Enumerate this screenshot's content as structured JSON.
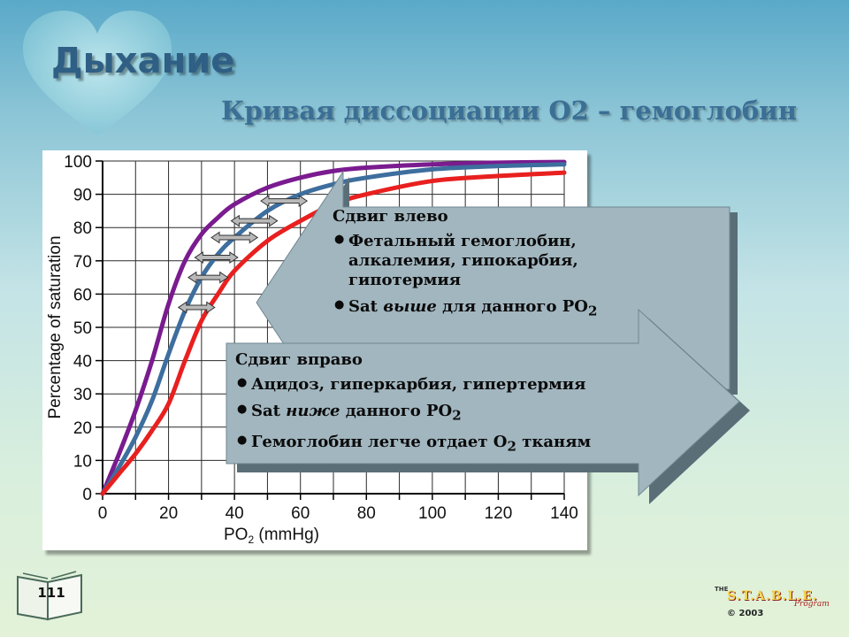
{
  "slide": {
    "title": "Дыхание",
    "subtitle": "Кривая диссоциации О2 – гемоглобин",
    "page_number": "111"
  },
  "logo": {
    "the": "THE",
    "name": "S.T.A.B.L.E.",
    "program": "Program",
    "copyright": "© 2003"
  },
  "callout_left": {
    "heading": "Сдвиг влево",
    "bullets": [
      {
        "text": "Фетальный гемоглобин, алкалемия, гипокарбия, гипотермия"
      },
      {
        "pre": "Sat ",
        "em": "выше",
        "post": " для данного PO",
        "sub": "2"
      }
    ]
  },
  "callout_right": {
    "heading": "Сдвиг вправо",
    "bullets": [
      {
        "text": "Ацидоз, гиперкарбия, гипертермия"
      },
      {
        "pre": "Sat ",
        "em": "ниже",
        "post": " данного PO",
        "sub": "2"
      },
      {
        "pre": "Гемоглобин легче отдает O",
        "sub": "2",
        "post": " тканям"
      }
    ]
  },
  "chart_data": {
    "type": "line",
    "xlabel": "PO2 (mmHg)",
    "xlabel_main": "PO",
    "xlabel_sub": "2",
    "xlabel_rest": " (mmHg)",
    "ylabel": "Percentage of saturation",
    "xlim": [
      0,
      140
    ],
    "ylim": [
      0,
      100
    ],
    "xticks": [
      0,
      20,
      40,
      60,
      80,
      100,
      120,
      140
    ],
    "yticks": [
      0,
      10,
      20,
      30,
      40,
      50,
      60,
      70,
      80,
      90,
      100
    ],
    "grid": true,
    "series": [
      {
        "key": "left-shift",
        "color": "#7a1b8f",
        "x": [
          0,
          5,
          10,
          15,
          20,
          25,
          30,
          35,
          40,
          50,
          60,
          70,
          80,
          100,
          120,
          140
        ],
        "y": [
          0,
          12,
          25,
          40,
          57,
          70,
          78,
          83,
          87,
          92,
          95,
          97,
          98,
          99,
          99.5,
          99.7
        ]
      },
      {
        "key": "normal",
        "color": "#3d6e9e",
        "x": [
          0,
          5,
          10,
          15,
          20,
          25,
          30,
          35,
          40,
          50,
          60,
          70,
          80,
          100,
          120,
          140
        ],
        "y": [
          0,
          8,
          17,
          28,
          42,
          55,
          65,
          72,
          77,
          85,
          90,
          93,
          95,
          97.5,
          98.5,
          99
        ]
      },
      {
        "key": "right-shift",
        "color": "#e8201f",
        "x": [
          0,
          5,
          10,
          15,
          20,
          25,
          30,
          35,
          40,
          50,
          60,
          70,
          80,
          100,
          120,
          140
        ],
        "y": [
          0,
          6,
          12,
          19,
          27,
          40,
          52,
          60,
          67,
          76,
          82,
          87,
          90,
          94,
          95.5,
          96.5
        ]
      }
    ],
    "shift_arrows": [
      {
        "x1": 23,
        "x2": 34,
        "y": 56
      },
      {
        "x1": 26,
        "x2": 38,
        "y": 65
      },
      {
        "x1": 28,
        "x2": 41,
        "y": 71
      },
      {
        "x1": 33,
        "x2": 47,
        "y": 77
      },
      {
        "x1": 39,
        "x2": 53,
        "y": 82
      },
      {
        "x1": 48,
        "x2": 62,
        "y": 88
      }
    ]
  },
  "colors": {
    "callout_fill": "#a2b6bf",
    "callout_shadow": "#5a6e78",
    "title": "#2f5f84"
  }
}
